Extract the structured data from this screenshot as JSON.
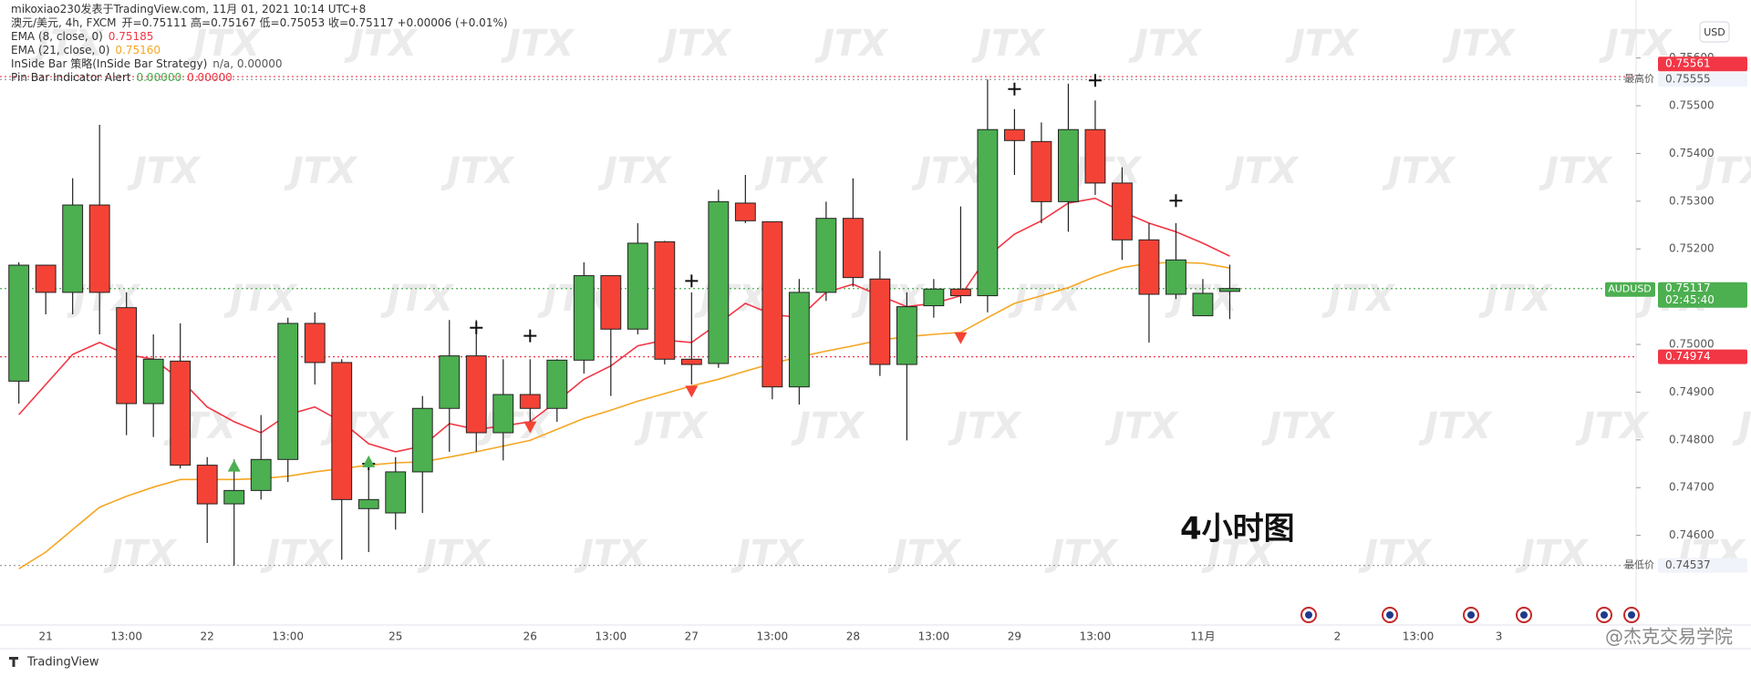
{
  "chart_data": {
    "type": "candlestick",
    "title": "mikoxiao230发表于TradingView.com, 11月 01, 2021 10:14 UTC+8",
    "symbol": "澳元/美元, 4h, FXCM",
    "ohlc_legend": "开=0.75111  高=0.75167  低=0.75053  收=0.75117  +0.00006 (+0.01%)",
    "currency": "USD",
    "annotation": "4小时图",
    "footer": "TradingView",
    "credit": "@杰克交易学院",
    "watermark": "JTX",
    "up_color": "#4caf50",
    "down_color": "#f44336",
    "categories": [
      null,
      "21",
      null,
      null,
      "13:00",
      null,
      null,
      "22",
      null,
      null,
      "13:00",
      null,
      null,
      null,
      "25",
      null,
      null,
      null,
      null,
      "26",
      null,
      null,
      "13:00",
      null,
      null,
      "27",
      null,
      null,
      "13:00",
      null,
      null,
      "28",
      null,
      null,
      "13:00",
      null,
      null,
      "29",
      null,
      null,
      "13:00",
      null,
      null,
      null,
      "11月",
      null,
      null,
      null,
      null,
      "2",
      null,
      null,
      "13:00",
      null,
      null,
      "3"
    ],
    "open": [
      0.74923,
      0.75166,
      0.75109,
      0.75292,
      0.75077,
      0.74876,
      0.74965,
      0.74747,
      0.74666,
      0.74694,
      0.74759,
      0.75044,
      0.74962,
      0.74656,
      0.74647,
      0.74733,
      0.74866,
      0.74976,
      0.74815,
      0.74895,
      0.74866,
      0.74967,
      0.75144,
      0.75032,
      0.75215,
      0.74969,
      0.7496,
      0.75296,
      0.75257,
      0.74911,
      0.75109,
      0.75264,
      0.75137,
      0.74958,
      0.75081,
      0.75116,
      0.75102,
      0.7545,
      0.75425,
      0.75299,
      0.7545,
      0.75338,
      0.75219,
      0.75105,
      0.7506,
      0.75111,
      null,
      null,
      null,
      null,
      null,
      null,
      null,
      null,
      null,
      null
    ],
    "high": [
      0.75172,
      0.75166,
      0.75348,
      0.7546,
      0.75109,
      0.75021,
      0.75044,
      0.74764,
      0.74759,
      0.74852,
      0.75056,
      0.75067,
      0.74969,
      0.74764,
      0.74764,
      0.74892,
      0.75051,
      0.75051,
      0.74969,
      0.74969,
      0.74969,
      0.75172,
      0.75144,
      0.75254,
      0.75217,
      0.75109,
      0.75324,
      0.75355,
      0.75257,
      0.75137,
      0.75299,
      0.75348,
      0.75196,
      0.75109,
      0.75137,
      0.75289,
      0.75555,
      0.75493,
      0.75465,
      0.75546,
      0.75511,
      0.75371,
      0.75254,
      0.75254,
      0.75137,
      0.75167,
      null,
      null,
      null,
      null,
      null,
      null,
      null,
      null,
      null,
      null
    ],
    "low": [
      0.74876,
      0.75063,
      0.75063,
      0.75021,
      0.7481,
      0.74806,
      0.7474,
      0.74584,
      0.74537,
      0.74675,
      0.74712,
      0.74916,
      0.74549,
      0.74565,
      0.74612,
      0.74647,
      0.74775,
      0.74775,
      0.74757,
      0.74834,
      0.74838,
      0.74939,
      0.74892,
      0.75021,
      0.74958,
      0.74916,
      0.74951,
      0.75254,
      0.74885,
      0.74874,
      0.75091,
      0.75121,
      0.74934,
      0.74799,
      0.75056,
      0.75086,
      0.75067,
      0.75355,
      0.75254,
      0.75236,
      0.75313,
      0.75177,
      0.75004,
      0.75095,
      0.7506,
      0.75053,
      null,
      null,
      null,
      null,
      null,
      null,
      null,
      null,
      null,
      null
    ],
    "close": [
      0.75166,
      0.75109,
      0.75292,
      0.75109,
      0.74876,
      0.74969,
      0.74747,
      0.74666,
      0.74694,
      0.74759,
      0.75044,
      0.74962,
      0.74675,
      0.74675,
      0.74733,
      0.74866,
      0.74976,
      0.74815,
      0.74895,
      0.74866,
      0.74967,
      0.75144,
      0.75032,
      0.75212,
      0.74969,
      0.74958,
      0.75299,
      0.75259,
      0.74911,
      0.75109,
      0.75264,
      0.7514,
      0.74958,
      0.75079,
      0.75116,
      0.75102,
      0.7545,
      0.75427,
      0.75299,
      0.7545,
      0.75338,
      0.75219,
      0.75105,
      0.75177,
      0.75107,
      0.75117,
      null,
      null,
      null,
      null,
      null,
      null,
      null,
      null,
      null,
      null
    ],
    "series": [
      {
        "name": "EMA (8, close, 0)",
        "color": "#f23645",
        "values": [
          0.74853,
          0.74916,
          0.74979,
          0.75004,
          0.74979,
          0.74969,
          0.74927,
          0.74869,
          0.74838,
          0.74815,
          0.74853,
          0.74869,
          0.74838,
          0.74792,
          0.74775,
          0.74787,
          0.74834,
          0.74822,
          0.74829,
          0.74838,
          0.74881,
          0.74927,
          0.74955,
          0.74997,
          0.75009,
          0.75004,
          0.75044,
          0.75086,
          0.75063,
          0.75056,
          0.75109,
          0.75126,
          0.75102,
          0.75079,
          0.75086,
          0.75102,
          0.75184,
          0.75231,
          0.75259,
          0.75296,
          0.75306,
          0.75278,
          0.75254,
          0.75236,
          0.75212,
          0.75185,
          null,
          null,
          null,
          null,
          null,
          null,
          null,
          null,
          null,
          null
        ],
        "value_labels": [
          null,
          null,
          null,
          null,
          null,
          null,
          null,
          null,
          null,
          null,
          null,
          null,
          null,
          null,
          null,
          null,
          null,
          null,
          null,
          null,
          null,
          null,
          null,
          null,
          null,
          null,
          null,
          null,
          null,
          null,
          null,
          null,
          null,
          null,
          null,
          null,
          null,
          null,
          null,
          null,
          null,
          null,
          null,
          null,
          null,
          "0.75185",
          null,
          null,
          null,
          null,
          null,
          null,
          null,
          null,
          null,
          null
        ]
      },
      {
        "name": "EMA (21, close, 0)",
        "color": "#f5a623",
        "values": [
          0.7453,
          0.74565,
          0.74612,
          0.74659,
          0.74682,
          0.74701,
          0.74717,
          0.74717,
          0.74717,
          0.74719,
          0.74724,
          0.74733,
          0.7474,
          0.74747,
          0.74752,
          0.74754,
          0.74764,
          0.74775,
          0.74787,
          0.74799,
          0.74822,
          0.74845,
          0.74862,
          0.74881,
          0.74897,
          0.74913,
          0.74927,
          0.74944,
          0.7496,
          0.74974,
          0.74986,
          0.74997,
          0.75009,
          0.75016,
          0.75021,
          0.75025,
          0.75056,
          0.75086,
          0.75102,
          0.75119,
          0.75142,
          0.75161,
          0.7517,
          0.75172,
          0.7517,
          0.7516,
          null,
          null,
          null,
          null,
          null,
          null,
          null,
          null,
          null,
          null
        ],
        "value_labels": [
          null,
          null,
          null,
          null,
          null,
          null,
          null,
          null,
          null,
          null,
          null,
          null,
          null,
          null,
          null,
          null,
          null,
          null,
          null,
          null,
          null,
          null,
          null,
          null,
          null,
          null,
          null,
          null,
          null,
          null,
          null,
          null,
          null,
          null,
          null,
          null,
          null,
          null,
          null,
          null,
          null,
          null,
          null,
          null,
          null,
          "0.75160",
          null,
          null,
          null,
          null,
          null,
          null,
          null,
          null,
          null,
          null
        ]
      }
    ],
    "indicators": [
      {
        "name": "InSide Bar 策略(InSide Bar Strategy)",
        "values": [
          "n/a, 0.00000"
        ],
        "colors": [
          "#555555"
        ]
      },
      {
        "name": "Pin Bar Indicator Alert",
        "values": [
          "0.00000",
          "0.00000"
        ],
        "colors": [
          "#4caf50",
          "#f23645"
        ]
      }
    ],
    "cross_signals": [
      null,
      null,
      null,
      null,
      null,
      null,
      null,
      null,
      null,
      null,
      null,
      null,
      null,
      0.7475,
      null,
      null,
      null,
      0.75035,
      null,
      0.75018,
      null,
      null,
      null,
      null,
      null,
      0.75133,
      null,
      null,
      null,
      null,
      null,
      null,
      null,
      null,
      null,
      null,
      null,
      0.75535,
      null,
      null,
      0.75553,
      null,
      null,
      0.75301,
      null,
      null,
      null,
      null,
      null,
      null,
      null,
      null,
      null,
      null,
      null,
      null
    ],
    "buy_signals": [
      null,
      null,
      null,
      null,
      null,
      null,
      null,
      null,
      0.74745,
      null,
      null,
      null,
      null,
      0.74754,
      null,
      null,
      null,
      null,
      null,
      null,
      null,
      null,
      null,
      null,
      null,
      null,
      null,
      null,
      null,
      null,
      null,
      null,
      null,
      null,
      null,
      null,
      null,
      null,
      null,
      null,
      null,
      null,
      null,
      null,
      null,
      null,
      null,
      null,
      null,
      null,
      null,
      null,
      null,
      null,
      null,
      null
    ],
    "sell_signals": [
      null,
      null,
      null,
      null,
      null,
      null,
      null,
      null,
      null,
      null,
      null,
      null,
      null,
      null,
      null,
      null,
      null,
      null,
      null,
      0.74827,
      null,
      null,
      null,
      null,
      null,
      0.74902,
      null,
      null,
      null,
      null,
      null,
      null,
      null,
      null,
      null,
      0.75014,
      null,
      null,
      null,
      null,
      null,
      null,
      null,
      null,
      null,
      null,
      null,
      null,
      null,
      null,
      null,
      null,
      null,
      null,
      null,
      null
    ],
    "price_lines": [
      {
        "value": 0.75555,
        "label": "0.75555",
        "name": "最高价",
        "color": "#9e9e9e"
      },
      {
        "value": 0.75561,
        "label": "0.75561",
        "color": "#f23645"
      },
      {
        "value": 0.75117,
        "label": "0.75117",
        "name": "AUDUSD",
        "countdown": "02:45:40",
        "color": "#4caf50"
      },
      {
        "value": 0.74974,
        "label": "0.74974",
        "color": "#f23645"
      },
      {
        "value": 0.74537,
        "label": "0.74537",
        "name": "最低价",
        "color": "#9e9e9e"
      }
    ],
    "ylim": [
      0.74418,
      0.75689
    ],
    "yticks": [
      {
        "value": 0.756,
        "label": "0.75600"
      },
      {
        "value": 0.755,
        "label": "0.75500"
      },
      {
        "value": 0.754,
        "label": "0.75400"
      },
      {
        "value": 0.753,
        "label": "0.75300"
      },
      {
        "value": 0.752,
        "label": "0.75200"
      },
      {
        "value": 0.75,
        "label": "0.75000"
      },
      {
        "value": 0.749,
        "label": "0.74900"
      },
      {
        "value": 0.748,
        "label": "0.74800"
      },
      {
        "value": 0.747,
        "label": "0.74700"
      },
      {
        "value": 0.746,
        "label": "0.74600"
      }
    ],
    "grid": false
  }
}
